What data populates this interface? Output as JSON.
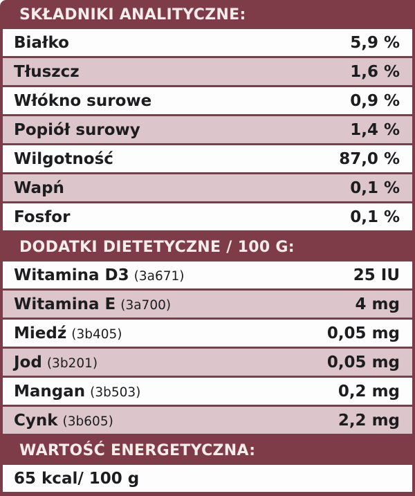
{
  "colors": {
    "background_maroon": "#7e3c49",
    "row_white": "#fdfdfd",
    "row_pink": "#dcc6cb",
    "text_dark": "#1d1d20",
    "header_text": "#f6edea"
  },
  "sections": [
    {
      "header": "SKŁADNIKI ANALITYCZNE:",
      "rows": [
        {
          "label": "Białko",
          "code": "",
          "value": "5,9 %"
        },
        {
          "label": "Tłuszcz",
          "code": "",
          "value": "1,6 %"
        },
        {
          "label": "Włókno surowe",
          "code": "",
          "value": "0,9 %"
        },
        {
          "label": "Popiół surowy",
          "code": "",
          "value": "1,4 %"
        },
        {
          "label": "Wilgotność",
          "code": "",
          "value": "87,0 %"
        },
        {
          "label": "Wapń",
          "code": "",
          "value": "0,1 %"
        },
        {
          "label": "Fosfor",
          "code": "",
          "value": "0,1 %"
        }
      ]
    },
    {
      "header": "DODATKI DIETETYCZNE / 100 G:",
      "rows": [
        {
          "label": "Witamina D3",
          "code": "(3a671)",
          "value": "25 IU"
        },
        {
          "label": "Witamina E",
          "code": "(3a700)",
          "value": "4 mg"
        },
        {
          "label": "Miedź",
          "code": "(3b405)",
          "value": "0,05 mg"
        },
        {
          "label": "Jod",
          "code": "(3b201)",
          "value": "0,05 mg"
        },
        {
          "label": "Mangan",
          "code": "(3b503)",
          "value": "0,2 mg"
        },
        {
          "label": "Cynk",
          "code": "(3b605)",
          "value": "2,2 mg"
        }
      ]
    },
    {
      "header": "WARTOŚĆ ENERGETYCZNA:",
      "rows": [
        {
          "label": "65 kcal/ 100 g",
          "code": "",
          "value": ""
        }
      ]
    }
  ]
}
